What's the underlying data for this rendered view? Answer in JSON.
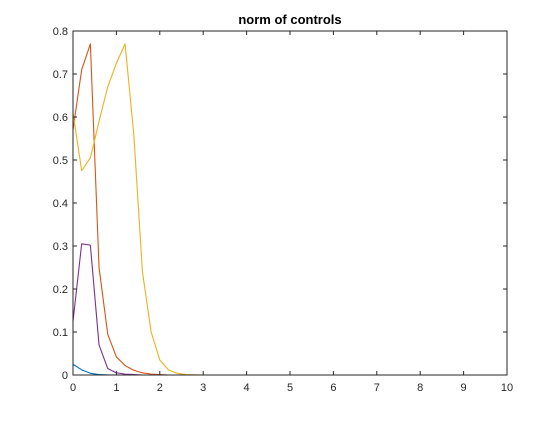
{
  "chart_data": {
    "type": "line",
    "title": "norm of controls",
    "xlabel": "",
    "ylabel": "",
    "xlim": [
      0,
      10
    ],
    "ylim": [
      0,
      0.8
    ],
    "xticks": [
      0,
      1,
      2,
      3,
      4,
      5,
      6,
      7,
      8,
      9,
      10
    ],
    "yticks": [
      0,
      0.1,
      0.2,
      0.3,
      0.4,
      0.5,
      0.6,
      0.7,
      0.8
    ],
    "xtick_labels": [
      "0",
      "1",
      "2",
      "3",
      "4",
      "5",
      "6",
      "7",
      "8",
      "9",
      "10"
    ],
    "ytick_labels": [
      "0",
      "0.1",
      "0.2",
      "0.3",
      "0.4",
      "0.5",
      "0.6",
      "0.7",
      "0.8"
    ],
    "grid": false,
    "box": true,
    "series": [
      {
        "color": "#0072BD",
        "x": [
          0,
          0.2,
          0.4,
          0.6,
          0.8,
          1.0,
          1.2,
          1.4,
          1.6,
          2.0,
          3.0,
          4.0,
          5.0,
          6.0,
          7.0,
          8.0,
          9.0,
          9.8
        ],
        "y": [
          0.025,
          0.012,
          0.004,
          0.001,
          0.0003,
          0,
          0,
          0,
          0,
          0,
          0,
          0,
          0,
          0,
          0,
          0,
          0,
          0
        ]
      },
      {
        "color": "#D95319",
        "x": [
          0,
          0.2,
          0.4,
          0.6,
          0.8,
          1.0,
          1.2,
          1.4,
          1.6,
          1.8,
          2.0,
          2.2,
          2.4,
          3.0,
          4.0,
          5.0,
          6.0,
          7.0,
          8.0,
          9.0,
          9.8
        ],
        "y": [
          0.57,
          0.71,
          0.77,
          0.25,
          0.095,
          0.042,
          0.022,
          0.011,
          0.005,
          0.002,
          0.001,
          0,
          0,
          0,
          0,
          0,
          0,
          0,
          0,
          0,
          0
        ]
      },
      {
        "color": "#EDB120",
        "x": [
          0,
          0.2,
          0.4,
          0.6,
          0.8,
          1.0,
          1.2,
          1.4,
          1.6,
          1.8,
          2.0,
          2.2,
          2.4,
          2.6,
          3.0,
          4.0,
          5.0,
          6.0,
          7.0,
          8.0,
          9.0,
          9.8
        ],
        "y": [
          0.61,
          0.475,
          0.505,
          0.59,
          0.67,
          0.725,
          0.77,
          0.56,
          0.24,
          0.1,
          0.035,
          0.012,
          0.004,
          0.001,
          0,
          0,
          0,
          0,
          0,
          0,
          0,
          0
        ]
      },
      {
        "color": "#7E2F8E",
        "x": [
          0,
          0.2,
          0.4,
          0.6,
          0.8,
          1.0,
          1.2,
          1.4,
          1.6,
          2.0,
          3.0,
          4.0,
          5.0,
          6.0,
          7.0,
          8.0,
          9.0,
          9.8
        ],
        "y": [
          0.125,
          0.305,
          0.302,
          0.07,
          0.015,
          0.005,
          0.002,
          0.001,
          0,
          0,
          0,
          0,
          0,
          0,
          0,
          0,
          0,
          0
        ]
      }
    ]
  }
}
